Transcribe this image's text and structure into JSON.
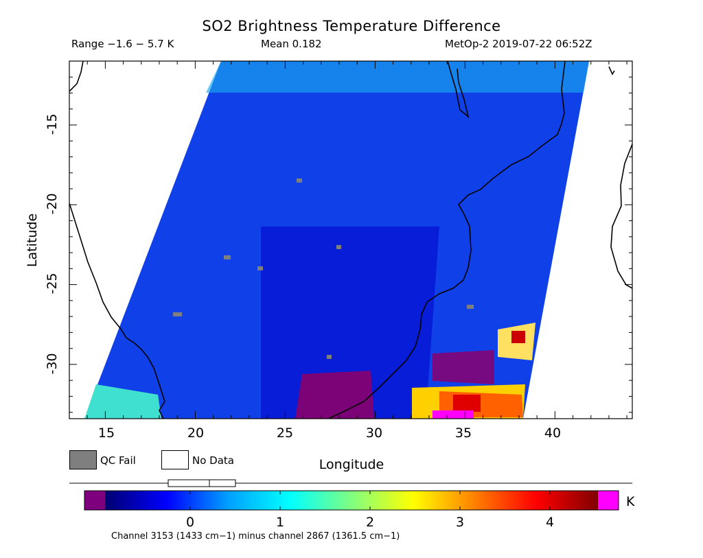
{
  "title": "SO2 Brightness Temperature Difference",
  "range_text": "Range −1.6 − 5.7 K",
  "mean_text": "Mean 0.182",
  "satellite_text": "MetOp-2 2019-07-22 06:52Z",
  "axes": {
    "xlabel": "Longitude",
    "ylabel": "Latitude",
    "x_ticks": [
      "15",
      "20",
      "25",
      "30",
      "35",
      "40"
    ],
    "y_ticks": [
      "-15",
      "-20",
      "-25",
      "-30"
    ]
  },
  "legend": {
    "qc_fail_label": "QC Fail",
    "no_data_label": "No Data",
    "qc_fail_color": "#7f7f7f",
    "no_data_color": "#ffffff"
  },
  "colorbar": {
    "unit": "K",
    "ticks": [
      "0",
      "1",
      "2",
      "3",
      "4"
    ],
    "below_range_color": "#7f007f",
    "above_range_color": "#ff00ff",
    "gradient": [
      "#000070",
      "#0000ff",
      "#00a0ff",
      "#00ffff",
      "#80ff80",
      "#ffff00",
      "#ff8000",
      "#ff0000",
      "#800000"
    ]
  },
  "footnote": "Channel 3153 (1433 cm−1) minus channel 2867 (1361.5 cm−1)",
  "map": {
    "extent_lon": [
      13,
      44.3
    ],
    "extent_lat": [
      -33.4,
      -11
    ],
    "coastline_color": "#000000",
    "swath_base_color": "#1040e8"
  }
}
